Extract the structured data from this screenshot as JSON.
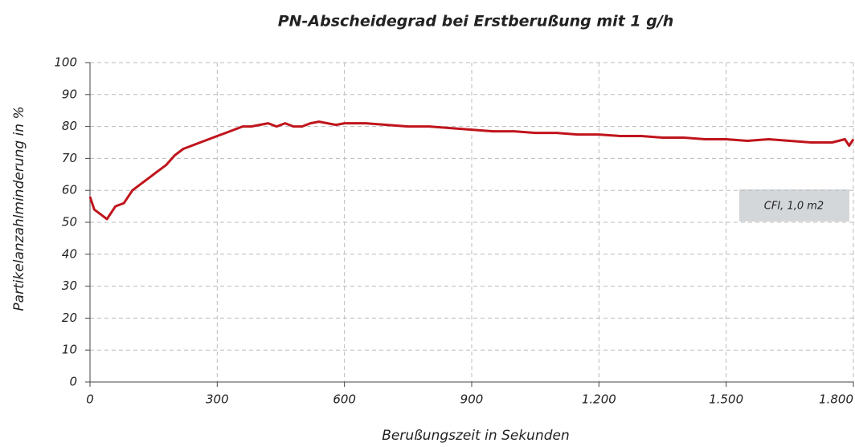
{
  "chart_data": {
    "type": "line",
    "title": "PN-Abscheidegrad bei Erstberußung mit 1 g/h",
    "x_label": "Berußungszeit in Sekunden",
    "y_label": "Partikelanzahlminderung in %",
    "annotation": "CFI, 1,0 m2",
    "x": [
      0,
      10,
      20,
      40,
      60,
      80,
      100,
      120,
      140,
      160,
      180,
      200,
      220,
      240,
      260,
      280,
      300,
      320,
      340,
      360,
      380,
      400,
      420,
      440,
      460,
      480,
      500,
      520,
      540,
      560,
      580,
      600,
      650,
      700,
      750,
      800,
      850,
      900,
      950,
      1000,
      1050,
      1100,
      1150,
      1200,
      1250,
      1300,
      1350,
      1400,
      1450,
      1500,
      1550,
      1600,
      1650,
      1700,
      1750,
      1780,
      1790,
      1800
    ],
    "series": [
      {
        "name": "CFI, 1,0 m2",
        "color": "#c0141c",
        "values": [
          58,
          54,
          53,
          51,
          55,
          56,
          60,
          62,
          64,
          66,
          68,
          71,
          73,
          74,
          75,
          76,
          77,
          78,
          79,
          80,
          80,
          80.5,
          81,
          80,
          81,
          80,
          80,
          81,
          81.5,
          81,
          80.5,
          81,
          81,
          80.5,
          80,
          80,
          79.5,
          79,
          78.5,
          78.5,
          78,
          78,
          77.5,
          77.5,
          77,
          77,
          76.5,
          76.5,
          76,
          76,
          75.5,
          76,
          75.5,
          75,
          75,
          76,
          74,
          76
        ]
      }
    ],
    "xlim": [
      0,
      1800
    ],
    "xticks": [
      0,
      300,
      600,
      900,
      {
        "value": 1200,
        "label": "1.200"
      },
      {
        "value": 1500,
        "label": "1.500"
      },
      {
        "value": 1800,
        "label": "1.800"
      }
    ],
    "ylim": [
      0,
      100
    ],
    "yticks": [
      0,
      10,
      20,
      30,
      40,
      50,
      60,
      70,
      80,
      90,
      100
    ],
    "grid": true
  }
}
